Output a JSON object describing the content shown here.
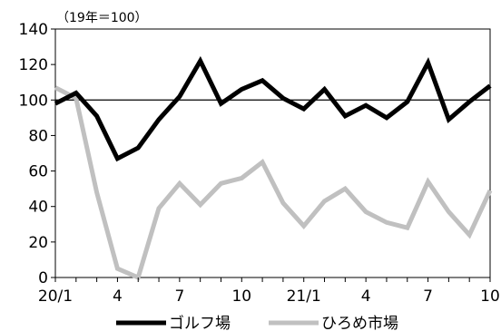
{
  "chart_data": {
    "type": "line",
    "unit_note": "（19年＝100）",
    "ylim": [
      0,
      140
    ],
    "y_ticks": [
      0,
      20,
      40,
      60,
      80,
      100,
      120,
      140
    ],
    "reference_line": 100,
    "x_tick_labels": [
      {
        "index": 0,
        "label": "20/1"
      },
      {
        "index": 3,
        "label": "4"
      },
      {
        "index": 6,
        "label": "7"
      },
      {
        "index": 9,
        "label": "10"
      },
      {
        "index": 12,
        "label": "21/1"
      },
      {
        "index": 15,
        "label": "4"
      },
      {
        "index": 18,
        "label": "7"
      },
      {
        "index": 21,
        "label": "10"
      }
    ],
    "series": [
      {
        "name": "ゴルフ場",
        "color": "#000000",
        "values": [
          98,
          104,
          91,
          67,
          73,
          89,
          102,
          122,
          98,
          106,
          111,
          101,
          95,
          106,
          91,
          97,
          90,
          99,
          121,
          89,
          99,
          108
        ]
      },
      {
        "name": "ひろめ市場",
        "color": "#c0c0c0",
        "values": [
          107,
          101,
          48,
          5,
          0,
          39,
          53,
          41,
          53,
          56,
          65,
          42,
          29,
          43,
          50,
          37,
          31,
          28,
          54,
          37,
          24,
          49
        ]
      }
    ],
    "legend_position": "bottom"
  }
}
